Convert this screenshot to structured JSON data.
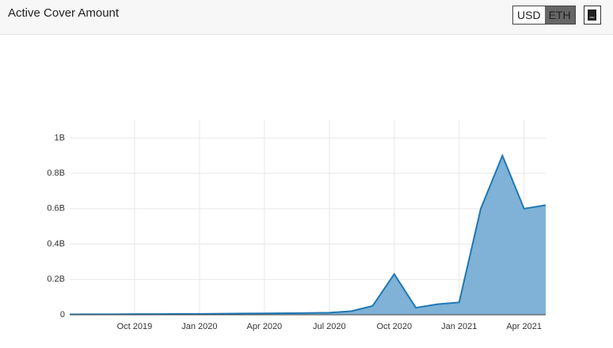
{
  "header": {
    "title": "Active Cover Amount",
    "buttons": [
      "USD",
      "ETH"
    ],
    "download_icon": "csv"
  },
  "chart_data": {
    "type": "area",
    "color": "#1f77b4",
    "fill": "#7fb2d6",
    "grid": true,
    "x": [
      "2019-07",
      "2019-08",
      "2019-09",
      "2019-10",
      "2019-11",
      "2019-12",
      "2020-01",
      "2020-02",
      "2020-03",
      "2020-04",
      "2020-05",
      "2020-06",
      "2020-07",
      "2020-08",
      "2020-09",
      "2020-10",
      "2020-11",
      "2020-12",
      "2021-01",
      "2021-02",
      "2021-03",
      "2021-04",
      "2021-05"
    ],
    "values": [
      2000000,
      3000000,
      3000000,
      4000000,
      4000000,
      5000000,
      5000000,
      6000000,
      7000000,
      8000000,
      9000000,
      10000000,
      12000000,
      20000000,
      50000000,
      230000000,
      40000000,
      60000000,
      70000000,
      600000000,
      900000000,
      600000000,
      620000000
    ],
    "xlim": [
      "2019-07",
      "2021-05"
    ],
    "xticks": [
      {
        "value": "2019-10",
        "label": "Oct 2019"
      },
      {
        "value": "2020-01",
        "label": "Jan 2020"
      },
      {
        "value": "2020-04",
        "label": "Apr 2020"
      },
      {
        "value": "2020-07",
        "label": "Jul 2020"
      },
      {
        "value": "2020-10",
        "label": "Oct 2020"
      },
      {
        "value": "2021-01",
        "label": "Jan 2021"
      },
      {
        "value": "2021-04",
        "label": "Apr 2021"
      }
    ],
    "ylim": [
      0,
      1100000000
    ],
    "yticks": [
      0,
      {
        "value": 200000000,
        "label": "0.2B"
      },
      {
        "value": 400000000,
        "label": "0.4B"
      },
      {
        "value": 600000000,
        "label": "0.6B"
      },
      {
        "value": 800000000,
        "label": "0.8B"
      },
      {
        "value": 1000000000,
        "label": "1B"
      }
    ]
  }
}
